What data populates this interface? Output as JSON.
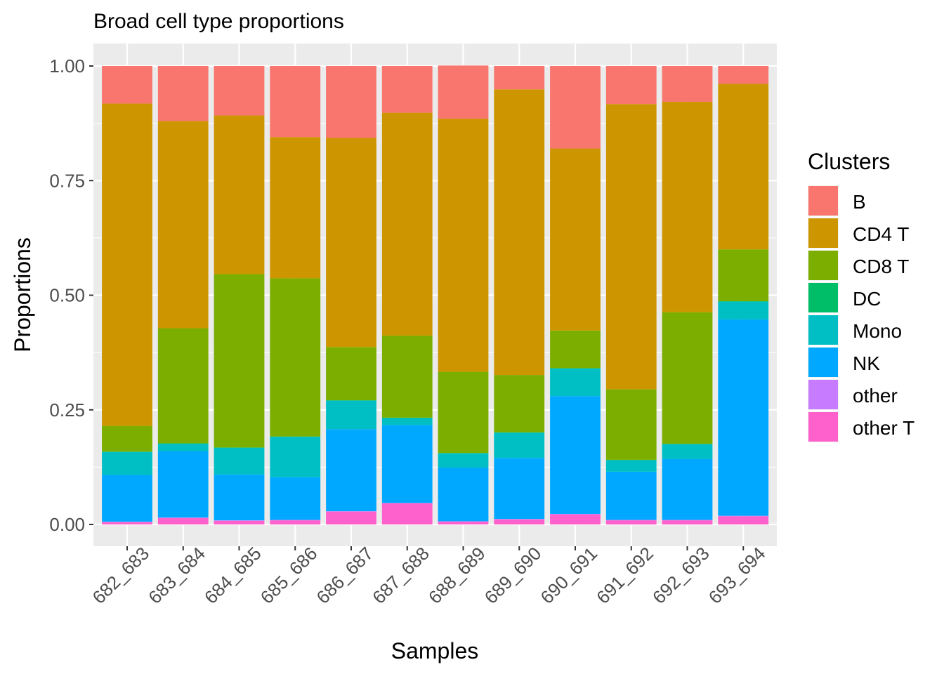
{
  "chart_data": {
    "type": "bar",
    "stacked": true,
    "title": "Broad cell type proportions",
    "xlabel": "Samples",
    "ylabel": "Proportions",
    "ylim": [
      0,
      1
    ],
    "y_ticks": [
      "0.00",
      "0.25",
      "0.50",
      "0.75",
      "1.00"
    ],
    "grid": true,
    "legend_title": "Clusters",
    "legend_position": "right",
    "categories": [
      "682_683",
      "683_684",
      "684_685",
      "685_686",
      "686_687",
      "687_688",
      "688_689",
      "689_690",
      "690_691",
      "691_692",
      "692_693",
      "693_694"
    ],
    "series": [
      {
        "name": "other T",
        "color": "#FF61CC",
        "values": [
          0.005,
          0.014,
          0.008,
          0.009,
          0.028,
          0.046,
          0.006,
          0.011,
          0.022,
          0.009,
          0.009,
          0.018
        ]
      },
      {
        "name": "other",
        "color": "#C77CFF",
        "values": [
          0.001,
          0.001,
          0.001,
          0.001,
          0.001,
          0.001,
          0.001,
          0.001,
          0.001,
          0.001,
          0.001,
          0.001
        ]
      },
      {
        "name": "NK",
        "color": "#00A9FF",
        "values": [
          0.102,
          0.145,
          0.1,
          0.093,
          0.179,
          0.17,
          0.117,
          0.133,
          0.257,
          0.105,
          0.133,
          0.428
        ]
      },
      {
        "name": "Mono",
        "color": "#00BFC4",
        "values": [
          0.05,
          0.016,
          0.058,
          0.088,
          0.062,
          0.015,
          0.031,
          0.055,
          0.06,
          0.025,
          0.032,
          0.039
        ]
      },
      {
        "name": "DC",
        "color": "#00BE67",
        "values": [
          0.001,
          0.001,
          0.001,
          0.001,
          0.001,
          0.001,
          0.001,
          0.001,
          0.001,
          0.001,
          0.001,
          0.001
        ]
      },
      {
        "name": "CD8 T",
        "color": "#7CAE00",
        "values": [
          0.056,
          0.251,
          0.378,
          0.345,
          0.116,
          0.179,
          0.177,
          0.125,
          0.082,
          0.154,
          0.287,
          0.113
        ]
      },
      {
        "name": "CD4 T",
        "color": "#CD9600",
        "values": [
          0.703,
          0.452,
          0.346,
          0.308,
          0.456,
          0.486,
          0.552,
          0.623,
          0.397,
          0.622,
          0.459,
          0.361
        ]
      },
      {
        "name": "B",
        "color": "#F8766D",
        "values": [
          0.082,
          0.12,
          0.108,
          0.155,
          0.157,
          0.102,
          0.116,
          0.051,
          0.18,
          0.083,
          0.078,
          0.039
        ]
      }
    ],
    "legend_order": [
      "B",
      "CD4 T",
      "CD8 T",
      "DC",
      "Mono",
      "NK",
      "other",
      "other T"
    ],
    "colors": {
      "panel_background": "#EBEBEB",
      "grid": "#FFFFFF",
      "tick_text": "#4D4D4D",
      "tick_mark": "#333333"
    }
  }
}
